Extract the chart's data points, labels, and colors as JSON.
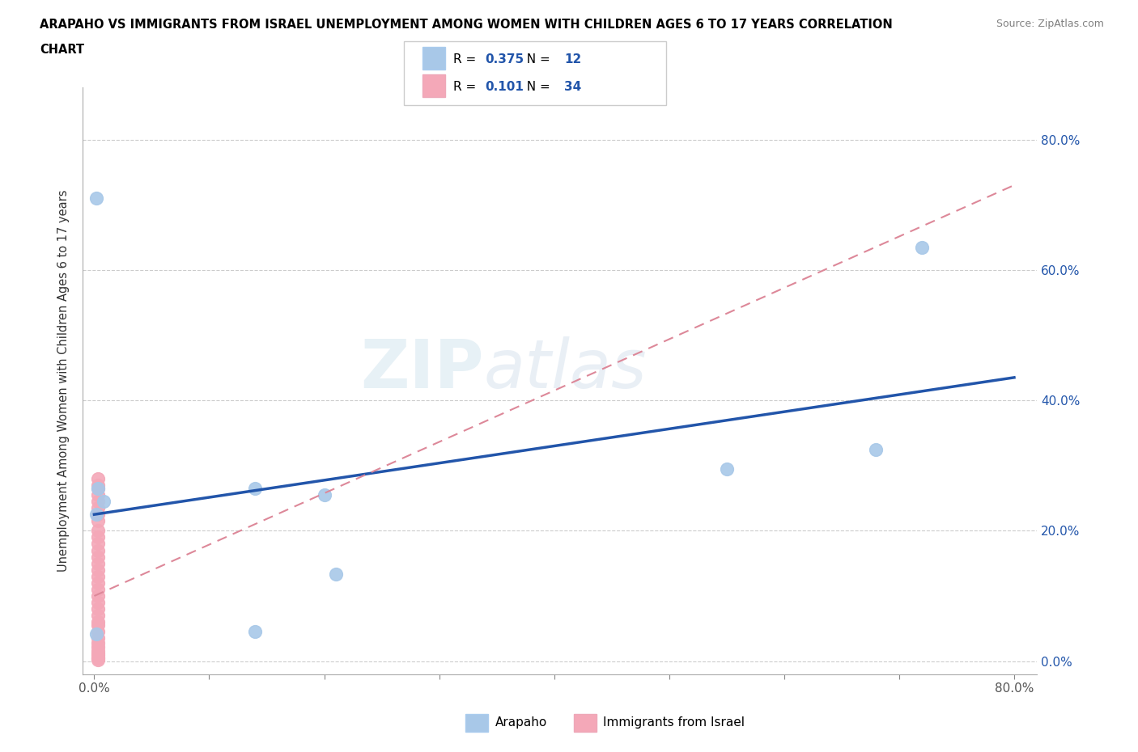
{
  "title_line1": "ARAPAHO VS IMMIGRANTS FROM ISRAEL UNEMPLOYMENT AMONG WOMEN WITH CHILDREN AGES 6 TO 17 YEARS CORRELATION",
  "title_line2": "CHART",
  "source_text": "Source: ZipAtlas.com",
  "watermark_zip": "ZIP",
  "watermark_atlas": "atlas",
  "xlabel": "",
  "ylabel": "Unemployment Among Women with Children Ages 6 to 17 years",
  "xlim": [
    -0.01,
    0.82
  ],
  "ylim": [
    -0.02,
    0.88
  ],
  "xtick_values": [
    0,
    0.1,
    0.2,
    0.3,
    0.4,
    0.5,
    0.6,
    0.7,
    0.8
  ],
  "ytick_values": [
    0,
    0.2,
    0.4,
    0.6,
    0.8
  ],
  "arapaho_R": 0.375,
  "arapaho_N": 12,
  "israel_R": 0.101,
  "israel_N": 34,
  "arapaho_color": "#a8c8e8",
  "israel_color": "#f4a8b8",
  "arapaho_line_color": "#2255aa",
  "israel_line_color": "#dd8899",
  "legend_label_arapaho": "Arapaho",
  "legend_label_israel": "Immigrants from Israel",
  "arapaho_x": [
    0.002,
    0.003,
    0.008,
    0.14,
    0.55,
    0.68,
    0.72,
    0.002,
    0.21,
    0.002,
    0.2,
    0.14
  ],
  "arapaho_y": [
    0.71,
    0.265,
    0.245,
    0.265,
    0.295,
    0.325,
    0.635,
    0.225,
    0.133,
    0.042,
    0.255,
    0.045
  ],
  "israel_x": [
    0.003,
    0.003,
    0.003,
    0.003,
    0.003,
    0.003,
    0.003,
    0.003,
    0.003,
    0.003,
    0.003,
    0.003,
    0.003,
    0.003,
    0.003,
    0.003,
    0.003,
    0.003,
    0.003,
    0.003,
    0.003,
    0.003,
    0.003,
    0.003,
    0.003,
    0.003,
    0.003,
    0.003,
    0.003,
    0.003,
    0.003,
    0.003,
    0.003,
    0.003
  ],
  "israel_y": [
    0.28,
    0.27,
    0.265,
    0.255,
    0.245,
    0.235,
    0.225,
    0.215,
    0.2,
    0.19,
    0.18,
    0.17,
    0.16,
    0.15,
    0.14,
    0.13,
    0.12,
    0.11,
    0.1,
    0.09,
    0.08,
    0.07,
    0.06,
    0.055,
    0.045,
    0.035,
    0.028,
    0.022,
    0.016,
    0.012,
    0.009,
    0.006,
    0.004,
    0.002
  ],
  "arapaho_trend_x": [
    0.0,
    0.8
  ],
  "arapaho_trend_y": [
    0.225,
    0.435
  ],
  "israel_trend_x": [
    0.0,
    0.8
  ],
  "israel_trend_y": [
    0.1,
    0.73
  ],
  "background_color": "#ffffff",
  "grid_color": "#cccccc",
  "right_ytick_labels": [
    "80.0%",
    "60.0%",
    "40.0%",
    "20.0%",
    "0.0%"
  ],
  "right_ytick_values": [
    0.8,
    0.6,
    0.4,
    0.2,
    0.0
  ]
}
